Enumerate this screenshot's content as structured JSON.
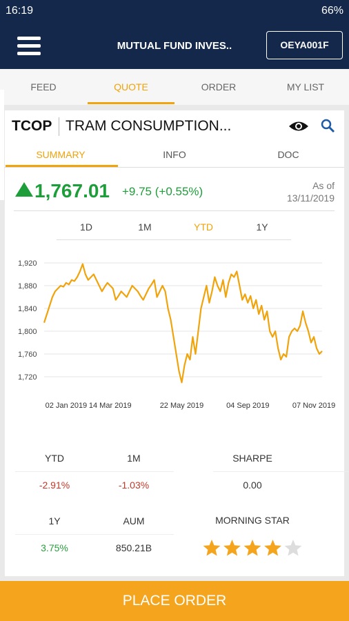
{
  "status_bar": {
    "time": "16:19",
    "battery": "66%"
  },
  "header": {
    "title": "MUTUAL FUND INVES..",
    "account": "OEYA001F"
  },
  "tabs": {
    "items": [
      "FEED",
      "QUOTE",
      "ORDER",
      "MY LIST"
    ],
    "active": 1
  },
  "instrument": {
    "code": "TCOP",
    "name": "TRAM CONSUMPTION..."
  },
  "subtabs": {
    "items": [
      "SUMMARY",
      "INFO",
      "DOC"
    ],
    "active": 0
  },
  "price": {
    "value": "1,767.01",
    "change": "+9.75 (+0.55%)",
    "as_of": "As of",
    "date": "13/11/2019"
  },
  "ranges": {
    "items": [
      "1D",
      "1M",
      "YTD",
      "1Y"
    ],
    "active": 2
  },
  "chart_data": {
    "type": "line",
    "color": "#f0a30a",
    "grid": true,
    "xlim": [
      0,
      101
    ],
    "ylim": [
      1700,
      1930
    ],
    "yticks": [
      {
        "value": 1720,
        "label": "1,720"
      },
      {
        "value": 1760,
        "label": "1,760"
      },
      {
        "value": 1800,
        "label": "1,800"
      },
      {
        "value": 1840,
        "label": "1,840"
      },
      {
        "value": 1880,
        "label": "1,880"
      },
      {
        "value": 1920,
        "label": "1,920"
      }
    ],
    "xticks": [
      {
        "value": 8,
        "label": "02 Jan 2019"
      },
      {
        "value": 24,
        "label": "14 Mar 2019"
      },
      {
        "value": 50,
        "label": "22 May 2019"
      },
      {
        "value": 74,
        "label": "04 Sep 2019"
      },
      {
        "value": 98,
        "label": "07 Nov 2019"
      }
    ],
    "values": [
      1815,
      1830,
      1845,
      1860,
      1870,
      1875,
      1880,
      1878,
      1885,
      1882,
      1890,
      1888,
      1895,
      1905,
      1918,
      1900,
      1890,
      1895,
      1900,
      1890,
      1880,
      1870,
      1878,
      1885,
      1880,
      1875,
      1855,
      1862,
      1870,
      1865,
      1860,
      1870,
      1880,
      1875,
      1870,
      1862,
      1855,
      1865,
      1875,
      1882,
      1890,
      1860,
      1870,
      1880,
      1870,
      1840,
      1820,
      1790,
      1760,
      1730,
      1710,
      1740,
      1760,
      1750,
      1790,
      1760,
      1800,
      1840,
      1860,
      1880,
      1850,
      1870,
      1895,
      1880,
      1870,
      1890,
      1860,
      1885,
      1900,
      1895,
      1905,
      1880,
      1855,
      1865,
      1850,
      1862,
      1840,
      1855,
      1830,
      1845,
      1820,
      1835,
      1800,
      1790,
      1800,
      1770,
      1750,
      1760,
      1755,
      1790,
      1800,
      1805,
      1800,
      1810,
      1835,
      1815,
      1800,
      1780,
      1790,
      1770,
      1760,
      1765
    ]
  },
  "stats": [
    {
      "label": "YTD",
      "value": "-2.91%",
      "color": "#c0392b"
    },
    {
      "label": "1M",
      "value": "-1.03%",
      "color": "#c0392b"
    },
    {
      "label": "SHARPE",
      "value": "0.00",
      "color": "#333333"
    },
    {
      "label": "1Y",
      "value": "3.75%",
      "color": "#27a03c"
    },
    {
      "label": "AUM",
      "value": "850.21B",
      "color": "#333333"
    }
  ],
  "morning_star": {
    "label": "MORNING STAR",
    "rating": 4,
    "rating_max": 5
  },
  "action": {
    "label": "PLACE ORDER"
  }
}
